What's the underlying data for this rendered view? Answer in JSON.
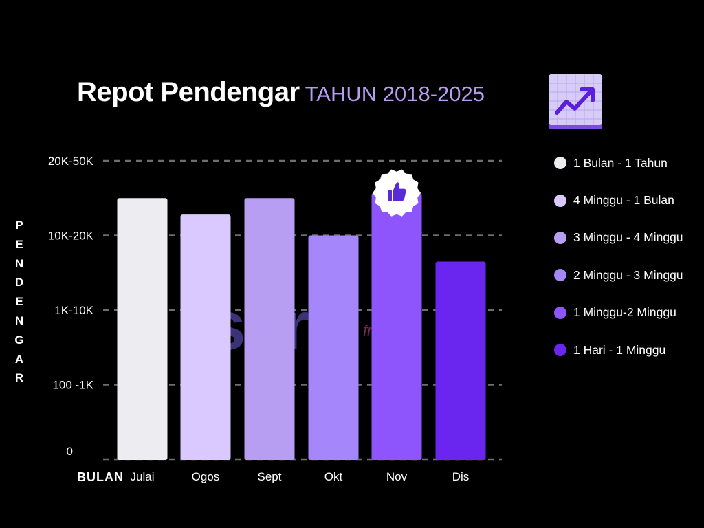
{
  "title": {
    "main": "Repot Pendengar",
    "sub": "TAHUN 2018-2025"
  },
  "watermark": {
    "text": "sora",
    "suffix": "fm"
  },
  "icons": {
    "title_badge": "trending-up-chart-icon",
    "highlight": "thumbs-up-icon"
  },
  "chart_data": {
    "type": "bar",
    "xlabel": "BULAN",
    "ylabel": "PENDENGAR",
    "categories": [
      "Julai",
      "Ogos",
      "Sept",
      "Okt",
      "Nov",
      "Dis"
    ],
    "y_ticks": [
      "0",
      "100 -1K",
      "1K-10K",
      "10K-20K",
      "20K-50K"
    ],
    "y_scale": "ordinal-bands",
    "ylim": [
      0,
      4
    ],
    "values": [
      3.5,
      3.28,
      3.5,
      3.0,
      3.57,
      2.65
    ],
    "colors": [
      "#edecf1",
      "#d9c9ff",
      "#b89ef2",
      "#a586fb",
      "#8e55fc",
      "#6a25ef"
    ],
    "highlight_category": "Nov",
    "grid": true,
    "legend_position": "right",
    "legend": [
      {
        "label": "1 Bulan - 1 Tahun",
        "color": "#edecf1"
      },
      {
        "label": "4 Minggu - 1 Bulan",
        "color": "#d9c9ff"
      },
      {
        "label": "3 Minggu - 4 Minggu",
        "color": "#b89ef2"
      },
      {
        "label": "2 Minggu - 3 Minggu",
        "color": "#a586fb"
      },
      {
        "label": "1 Minggu-2 Minggu",
        "color": "#8e55fc"
      },
      {
        "label": "1 Hari - 1 Minggu",
        "color": "#6a25ef"
      }
    ]
  }
}
